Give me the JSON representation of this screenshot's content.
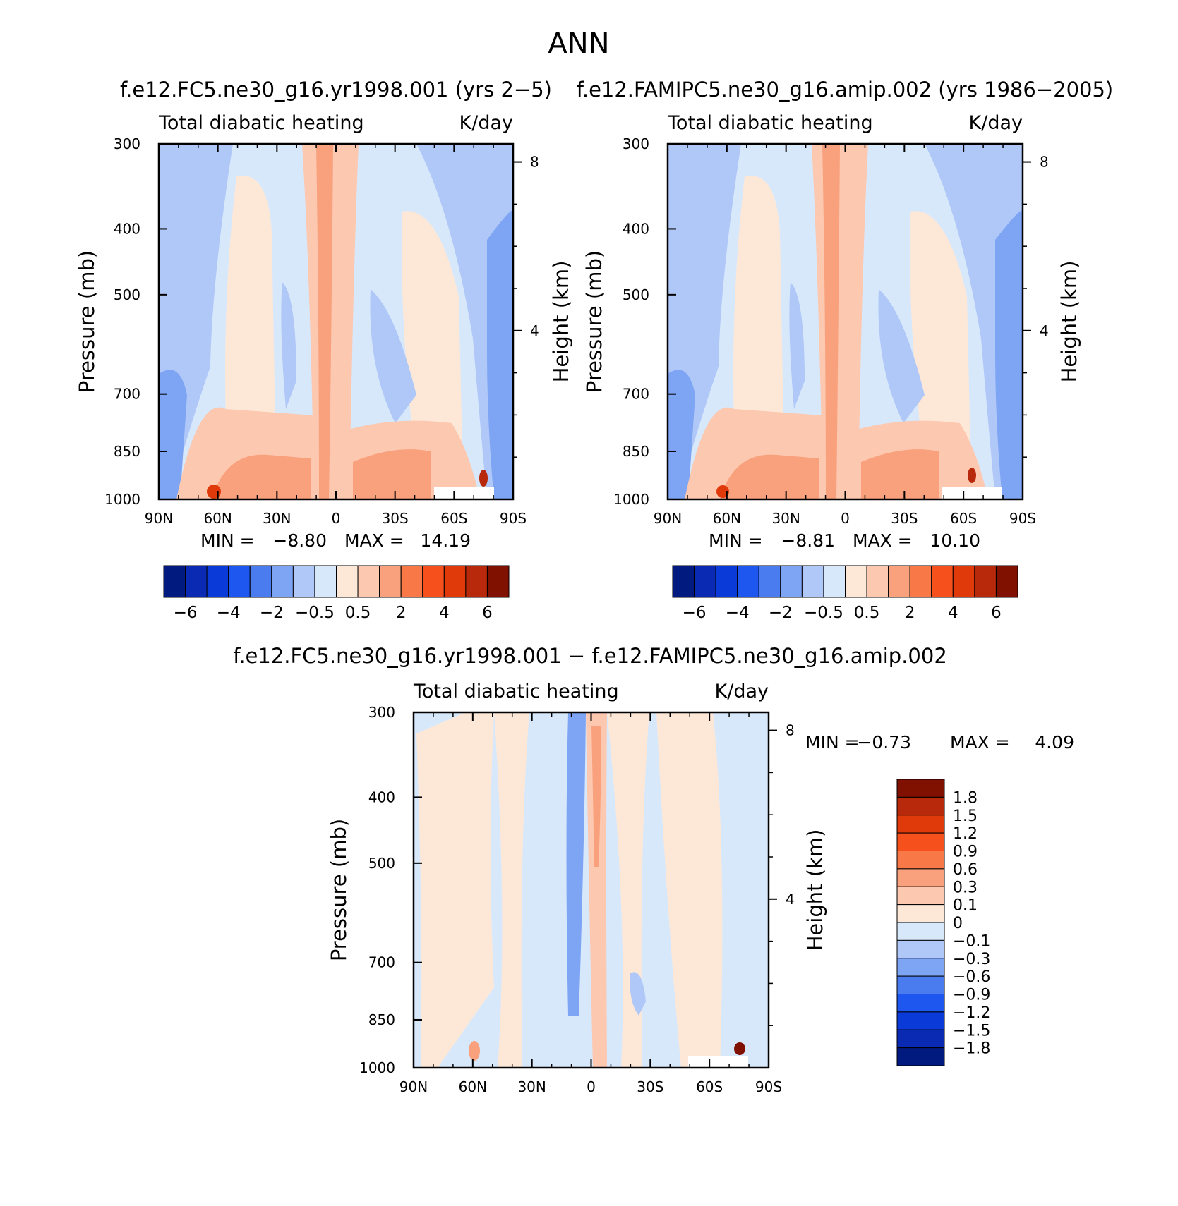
{
  "figure": {
    "title": "ANN"
  },
  "colors": {
    "main": [
      "#001a80",
      "#0a2ab4",
      "#0a3ad8",
      "#1e56f0",
      "#4a7cf0",
      "#7ea4f4",
      "#b0c8f8",
      "#d8e8fb",
      "#fde8d8",
      "#fcc8b0",
      "#f9a07c",
      "#f87848",
      "#f6501c",
      "#e03a0a",
      "#b8280a",
      "#801000"
    ],
    "diff": [
      "#801000",
      "#b8280a",
      "#e03a0a",
      "#f6501c",
      "#f87848",
      "#f9a07c",
      "#fcc8b0",
      "#fde8d8",
      "#d8e8fb",
      "#b0c8f8",
      "#7ea4f4",
      "#4a7cf0",
      "#1e56f0",
      "#0a3ad8",
      "#0a2ab4",
      "#001a80"
    ]
  },
  "chart_data": [
    {
      "type": "heatmap",
      "title": "f.e12.FC5.ne30_g16.yr1998.001 (yrs 2−5)",
      "subtitle_left": "Total diabatic heating",
      "subtitle_right": "K/day",
      "ylabel": "Pressure (mb)",
      "ylabel_right": "Height (km)",
      "x_ticks": [
        "90N",
        "60N",
        "30N",
        "0",
        "30S",
        "60S",
        "90S"
      ],
      "x_values": [
        90,
        60,
        30,
        0,
        -30,
        -60,
        -90
      ],
      "y_ticks": [
        "300",
        "400",
        "500",
        "700",
        "850",
        "1000"
      ],
      "y_values": [
        300,
        400,
        500,
        700,
        850,
        1000
      ],
      "ylim": [
        1000,
        300
      ],
      "log_y": true,
      "height_ticks": [
        "8",
        "4"
      ],
      "height_values": [
        8,
        4
      ],
      "min_label": "MIN =",
      "min_value": "−8.80",
      "max_label": "MAX =",
      "max_value": "14.19",
      "colorbar_labels": [
        "−6",
        "−4",
        "−2",
        "−0.5",
        "0.5",
        "2",
        "4",
        "6"
      ]
    },
    {
      "type": "heatmap",
      "title": "f.e12.FAMIPC5.ne30_g16.amip.002 (yrs 1986−2005)",
      "subtitle_left": "Total diabatic heating",
      "subtitle_right": "K/day",
      "ylabel": "Pressure (mb)",
      "ylabel_right": "Height (km)",
      "x_ticks": [
        "90N",
        "60N",
        "30N",
        "0",
        "30S",
        "60S",
        "90S"
      ],
      "x_values": [
        90,
        60,
        30,
        0,
        -30,
        -60,
        -90
      ],
      "y_ticks": [
        "300",
        "400",
        "500",
        "700",
        "850",
        "1000"
      ],
      "y_values": [
        300,
        400,
        500,
        700,
        850,
        1000
      ],
      "ylim": [
        1000,
        300
      ],
      "log_y": true,
      "height_ticks": [
        "8",
        "4"
      ],
      "height_values": [
        8,
        4
      ],
      "min_label": "MIN =",
      "min_value": "−8.81",
      "max_label": "MAX =",
      "max_value": "10.10",
      "colorbar_labels": [
        "−6",
        "−4",
        "−2",
        "−0.5",
        "0.5",
        "2",
        "4",
        "6"
      ]
    },
    {
      "type": "heatmap",
      "title": "f.e12.FC5.ne30_g16.yr1998.001 − f.e12.FAMIPC5.ne30_g16.amip.002",
      "subtitle_left": "Total diabatic heating",
      "subtitle_right": "K/day",
      "ylabel": "Pressure (mb)",
      "ylabel_right": "Height (km)",
      "x_ticks": [
        "90N",
        "60N",
        "30N",
        "0",
        "30S",
        "60S",
        "90S"
      ],
      "x_values": [
        90,
        60,
        30,
        0,
        -30,
        -60,
        -90
      ],
      "y_ticks": [
        "300",
        "400",
        "500",
        "700",
        "850",
        "1000"
      ],
      "y_values": [
        300,
        400,
        500,
        700,
        850,
        1000
      ],
      "ylim": [
        1000,
        300
      ],
      "log_y": true,
      "height_ticks": [
        "8",
        "4"
      ],
      "height_values": [
        8,
        4
      ],
      "min_label": "MIN =",
      "min_value": "−0.73",
      "max_label": "MAX =",
      "max_value": "4.09",
      "colorbar_labels": [
        "1.8",
        "1.5",
        "1.2",
        "0.9",
        "0.6",
        "0.3",
        "0.1",
        "0",
        "−0.1",
        "−0.3",
        "−0.6",
        "−0.9",
        "−1.2",
        "−1.5",
        "−1.8"
      ]
    }
  ]
}
